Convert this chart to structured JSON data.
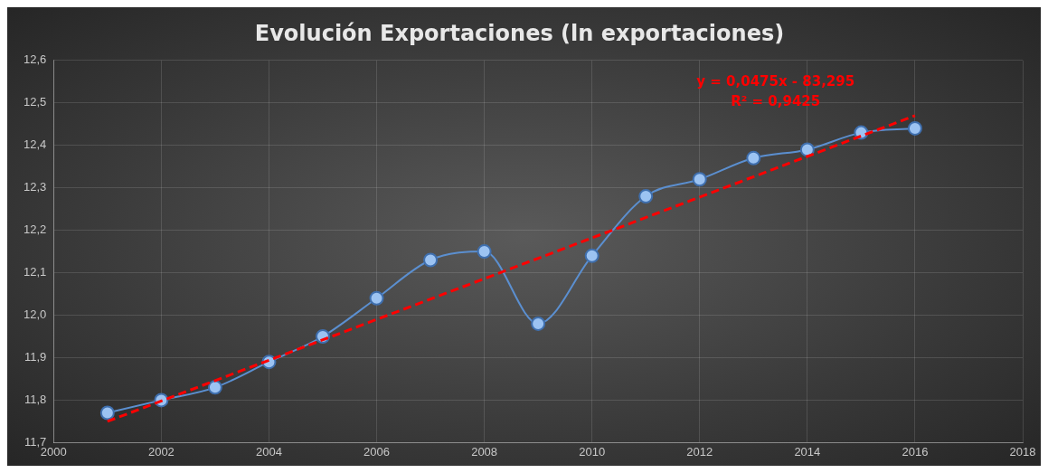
{
  "chart_data": {
    "type": "line",
    "title": "Evolución Exportaciones (ln exportaciones)",
    "x": [
      2001,
      2002,
      2003,
      2004,
      2005,
      2006,
      2007,
      2008,
      2009,
      2010,
      2011,
      2012,
      2013,
      2014,
      2015,
      2016
    ],
    "series": [
      {
        "color": "#5b8fd0",
        "values": [
          11.77,
          11.8,
          11.83,
          11.89,
          11.95,
          12.04,
          12.13,
          12.15,
          11.98,
          12.14,
          12.28,
          12.32,
          12.37,
          12.39,
          12.43,
          12.44
        ]
      },
      {
        "type": "line",
        "color": "#ff0000",
        "line_style": "dashed",
        "marker": "none",
        "x": [
          2001,
          2016
        ],
        "values": [
          11.75,
          12.47
        ]
      }
    ],
    "marker": "circle",
    "xlim": [
      2000,
      2018
    ],
    "xticks": [
      2000,
      2002,
      2004,
      2006,
      2008,
      2010,
      2012,
      2014,
      2016,
      2018
    ],
    "ylim": [
      11.7,
      12.6
    ],
    "yticks": [
      {
        "value": 11.7,
        "label": "11,7"
      },
      {
        "value": 11.8,
        "label": "11,8"
      },
      {
        "value": 11.9,
        "label": "11,9"
      },
      {
        "value": 12.0,
        "label": "12,0"
      },
      {
        "value": 12.1,
        "label": "12,1"
      },
      {
        "value": 12.2,
        "label": "12,2"
      },
      {
        "value": 12.3,
        "label": "12,3"
      },
      {
        "value": 12.4,
        "label": "12,4"
      },
      {
        "value": 12.5,
        "label": "12,5"
      },
      {
        "value": 12.6,
        "label": "12,6"
      }
    ],
    "grid": true,
    "annotations": [
      "y = 0,0475x - 83,295",
      "R² = 0,9425"
    ]
  }
}
